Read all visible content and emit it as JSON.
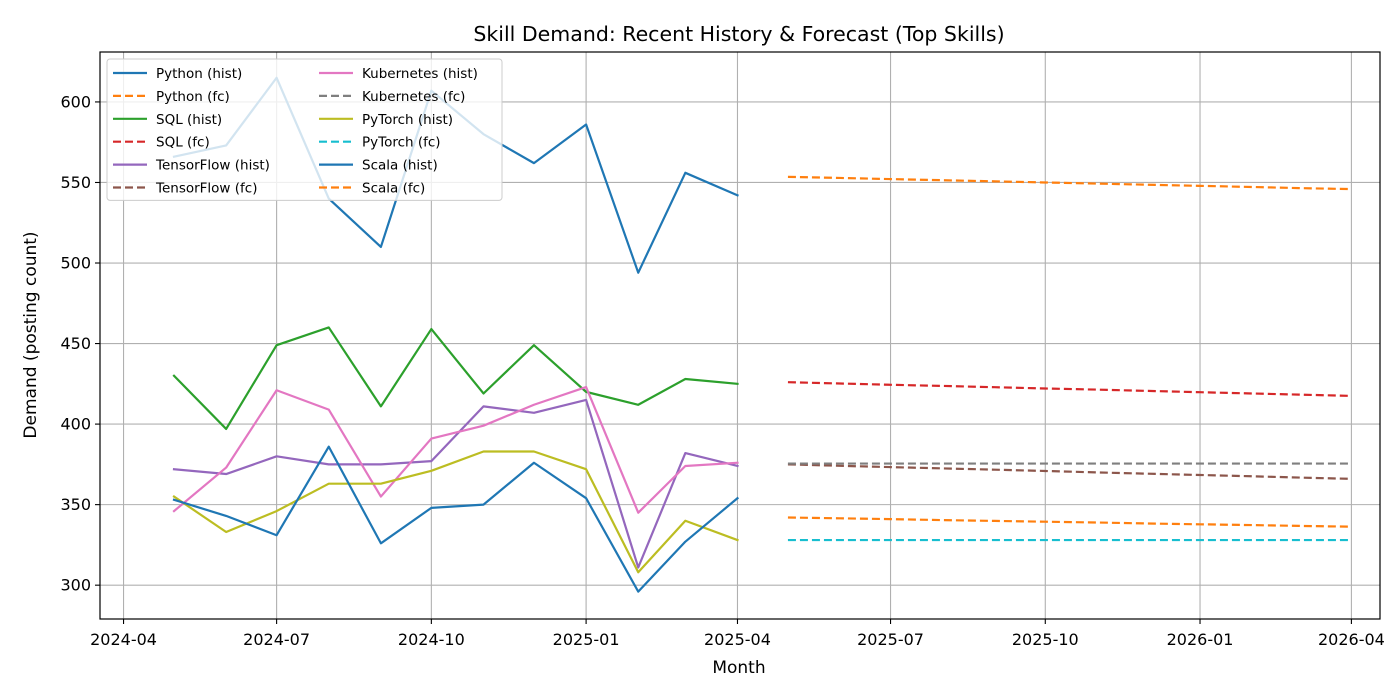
{
  "chart_data": {
    "type": "line",
    "title": "Skill Demand: Recent History & Forecast (Top Skills)",
    "xlabel": "Month",
    "ylabel": "Demand (posting count)",
    "x_axis": {
      "kind": "date",
      "range": [
        "2024-03-18",
        "2026-04-18"
      ],
      "ticks": [
        "2024-04",
        "2024-07",
        "2024-10",
        "2025-01",
        "2025-04",
        "2025-07",
        "2025-10",
        "2026-01",
        "2026-04"
      ]
    },
    "y_axis": {
      "range": [
        279,
        631
      ],
      "ticks": [
        300,
        350,
        400,
        450,
        500,
        550,
        600
      ]
    },
    "grid": true,
    "legend_position": "top-left",
    "legend_columns": 2,
    "hist_months": [
      "2024-05",
      "2024-06",
      "2024-07",
      "2024-08",
      "2024-09",
      "2024-10",
      "2024-11",
      "2024-12",
      "2025-01",
      "2025-02",
      "2025-03",
      "2025-04"
    ],
    "fc_months": [
      "2025-05",
      "2025-06",
      "2025-07",
      "2025-08",
      "2025-09",
      "2025-10",
      "2025-11",
      "2025-12",
      "2026-01",
      "2026-02",
      "2026-03",
      "2026-04"
    ],
    "series": [
      {
        "name": "Python (hist)",
        "kind": "hist",
        "color": "#1f77b4",
        "values": [
          566,
          573,
          615,
          540,
          510,
          607,
          580,
          562,
          586,
          494,
          556,
          542
        ]
      },
      {
        "name": "Python (fc)",
        "kind": "fc",
        "color": "#ff7f0e",
        "values": [
          553.5,
          552.8,
          552.1,
          551.4,
          550.7,
          550.0,
          549.3,
          548.6,
          547.9,
          547.2,
          546.5,
          545.9
        ]
      },
      {
        "name": "SQL (hist)",
        "kind": "hist",
        "color": "#2ca02c",
        "values": [
          430,
          397,
          449,
          460,
          411,
          459,
          419,
          449,
          420,
          412,
          428,
          425
        ]
      },
      {
        "name": "SQL (fc)",
        "kind": "fc",
        "color": "#d62728",
        "values": [
          426,
          425.2,
          424.4,
          423.7,
          422.9,
          422.1,
          421.4,
          420.6,
          419.8,
          419.0,
          418.3,
          417.5
        ]
      },
      {
        "name": "TensorFlow (hist)",
        "kind": "hist",
        "color": "#9467bd",
        "values": [
          372,
          369,
          380,
          375,
          375,
          377,
          411,
          407,
          415,
          311,
          382,
          374
        ]
      },
      {
        "name": "TensorFlow (fc)",
        "kind": "fc",
        "color": "#8c564b",
        "values": [
          375,
          374.1,
          373.3,
          372.5,
          371.7,
          370.9,
          370.0,
          369.2,
          368.4,
          367.6,
          366.8,
          366.0
        ]
      },
      {
        "name": "Kubernetes (hist)",
        "kind": "hist",
        "color": "#e377c2",
        "values": [
          346,
          373,
          421,
          409,
          355,
          391,
          399,
          412,
          423,
          345,
          374,
          376
        ]
      },
      {
        "name": "Kubernetes (fc)",
        "kind": "fc",
        "color": "#7f7f7f",
        "values": [
          375.5,
          375.5,
          375.5,
          375.5,
          375.5,
          375.5,
          375.5,
          375.5,
          375.5,
          375.5,
          375.5,
          375.5
        ]
      },
      {
        "name": "PyTorch (hist)",
        "kind": "hist",
        "color": "#bcbd22",
        "values": [
          355,
          333,
          346,
          363,
          363,
          371,
          383,
          383,
          372,
          308,
          340,
          328
        ]
      },
      {
        "name": "PyTorch (fc)",
        "kind": "fc",
        "color": "#17becf",
        "values": [
          328,
          328,
          328,
          328,
          328,
          328,
          328,
          328,
          328,
          328,
          328,
          328
        ]
      },
      {
        "name": "Scala (hist)",
        "kind": "hist",
        "color": "#1f77b4",
        "values": [
          353,
          343,
          331,
          386,
          326,
          348,
          350,
          376,
          354,
          296,
          327,
          354
        ]
      },
      {
        "name": "Scala (fc)",
        "kind": "fc",
        "color": "#ff7f0e",
        "values": [
          342,
          341.5,
          341.0,
          340.4,
          339.9,
          339.4,
          338.9,
          338.3,
          337.8,
          337.3,
          336.8,
          336.3
        ]
      }
    ]
  }
}
